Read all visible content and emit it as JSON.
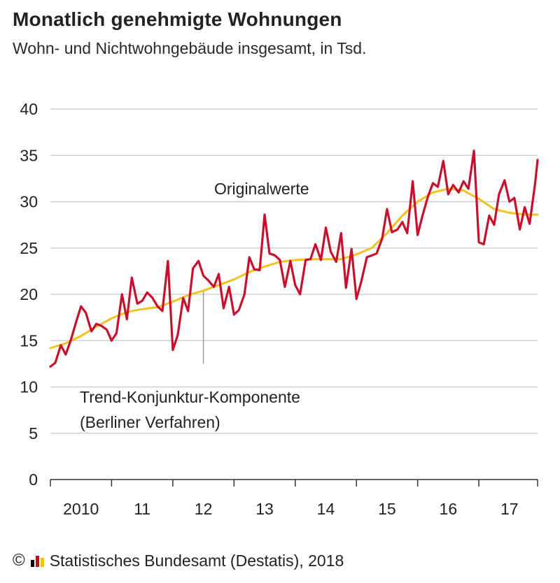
{
  "title": "Monatlich genehmigte Wohnungen",
  "subtitle": "Wohn- und Nichtwohngebäude insgesamt, in Tsd.",
  "footer": {
    "copyright": "©",
    "source": "Statistisches Bundesamt (Destatis), 2018",
    "logo_colors": [
      "#000000",
      "#d0021b",
      "#f5c400"
    ]
  },
  "colors": {
    "original": "#c8102e",
    "trend": "#f2c320",
    "grid": "#d0d0d0",
    "pointer": "#999999"
  },
  "chart_data": {
    "type": "line",
    "title": "Monatlich genehmigte Wohnungen",
    "subtitle": "Wohn- und Nichtwohngebäude insgesamt, in Tsd.",
    "ylim": [
      0,
      40
    ],
    "yticks": [
      0,
      5,
      10,
      15,
      20,
      25,
      30,
      35,
      40
    ],
    "xlim": [
      2010.0,
      2017.96
    ],
    "xtick_labels": [
      {
        "label": "2010",
        "x": 2010.5
      },
      {
        "label": "11",
        "x": 2011.5
      },
      {
        "label": "12",
        "x": 2012.5
      },
      {
        "label": "13",
        "x": 2013.5
      },
      {
        "label": "14",
        "x": 2014.5
      },
      {
        "label": "15",
        "x": 2015.5
      },
      {
        "label": "16",
        "x": 2016.5
      },
      {
        "label": "17",
        "x": 2017.5
      }
    ],
    "grid": true,
    "annotations": [
      {
        "text": "Originalwerte",
        "x": 2015.0,
        "y": 31.4
      },
      {
        "text": "Trend-Konjunktur-Komponente",
        "line2": "(Berliner Verfahren)",
        "x": 2012.5,
        "y": 9.8
      }
    ],
    "series": [
      {
        "name": "Originalwerte",
        "x": [
          2010.0,
          2010.08,
          2010.17,
          2010.25,
          2010.33,
          2010.42,
          2010.5,
          2010.58,
          2010.67,
          2010.75,
          2010.83,
          2010.92,
          2011.0,
          2011.08,
          2011.17,
          2011.25,
          2011.33,
          2011.42,
          2011.5,
          2011.58,
          2011.67,
          2011.75,
          2011.83,
          2011.92,
          2012.0,
          2012.08,
          2012.17,
          2012.25,
          2012.33,
          2012.42,
          2012.5,
          2012.58,
          2012.67,
          2012.75,
          2012.83,
          2012.92,
          2013.0,
          2013.08,
          2013.17,
          2013.25,
          2013.33,
          2013.42,
          2013.5,
          2013.58,
          2013.67,
          2013.75,
          2013.83,
          2013.92,
          2014.0,
          2014.08,
          2014.17,
          2014.25,
          2014.33,
          2014.42,
          2014.5,
          2014.58,
          2014.67,
          2014.75,
          2014.83,
          2014.92,
          2015.0,
          2015.08,
          2015.17,
          2015.25,
          2015.33,
          2015.42,
          2015.5,
          2015.58,
          2015.67,
          2015.75,
          2015.83,
          2015.92,
          2016.0,
          2016.08,
          2016.17,
          2016.25,
          2016.33,
          2016.42,
          2016.5,
          2016.58,
          2016.67,
          2016.75,
          2016.83,
          2016.92,
          2017.0,
          2017.08,
          2017.17,
          2017.25,
          2017.33,
          2017.42,
          2017.5,
          2017.58,
          2017.67,
          2017.75,
          2017.83,
          2017.92,
          2017.96
        ],
        "values": [
          12.2,
          12.6,
          14.5,
          13.5,
          15.0,
          17.0,
          18.7,
          18.0,
          16.0,
          16.8,
          16.6,
          16.2,
          15.0,
          15.8,
          20.0,
          17.3,
          21.8,
          19.0,
          19.3,
          20.2,
          19.6,
          18.7,
          18.2,
          23.6,
          14.0,
          15.6,
          19.6,
          18.2,
          22.8,
          23.6,
          22.0,
          21.5,
          20.8,
          22.2,
          18.5,
          20.8,
          17.8,
          18.3,
          20.0,
          24.0,
          22.7,
          22.6,
          28.6,
          24.4,
          24.2,
          23.7,
          20.8,
          23.6,
          21.0,
          20.0,
          23.7,
          23.8,
          25.4,
          23.7,
          27.2,
          24.6,
          23.5,
          26.6,
          20.7,
          24.9,
          19.5,
          21.4,
          24.0,
          24.2,
          24.4,
          26.0,
          29.2,
          26.7,
          27.0,
          27.8,
          26.6,
          32.2,
          26.4,
          28.5,
          30.6,
          32.0,
          31.6,
          34.4,
          30.8,
          31.8,
          31.0,
          32.2,
          31.4,
          35.5,
          25.6,
          25.4,
          28.5,
          27.5,
          30.8,
          32.3,
          30.0,
          30.4,
          27.0,
          29.4,
          27.6,
          32.0,
          34.5
        ]
      },
      {
        "name": "Trend-Konjunktur-Komponente",
        "x": [
          2010.0,
          2010.25,
          2010.5,
          2010.75,
          2011.0,
          2011.25,
          2011.5,
          2011.75,
          2012.0,
          2012.25,
          2012.5,
          2012.75,
          2013.0,
          2013.25,
          2013.5,
          2013.75,
          2014.0,
          2014.25,
          2014.5,
          2014.75,
          2015.0,
          2015.25,
          2015.5,
          2015.75,
          2016.0,
          2016.25,
          2016.5,
          2016.75,
          2017.0,
          2017.25,
          2017.5,
          2017.75,
          2017.96
        ],
        "values": [
          14.2,
          14.7,
          15.5,
          16.5,
          17.4,
          18.1,
          18.4,
          18.6,
          19.2,
          19.9,
          20.4,
          21.0,
          21.6,
          22.4,
          23.0,
          23.5,
          23.7,
          23.8,
          23.8,
          23.8,
          24.3,
          25.0,
          26.6,
          28.5,
          30.0,
          31.0,
          31.4,
          31.2,
          30.3,
          29.2,
          28.8,
          28.6,
          28.6
        ]
      }
    ]
  }
}
